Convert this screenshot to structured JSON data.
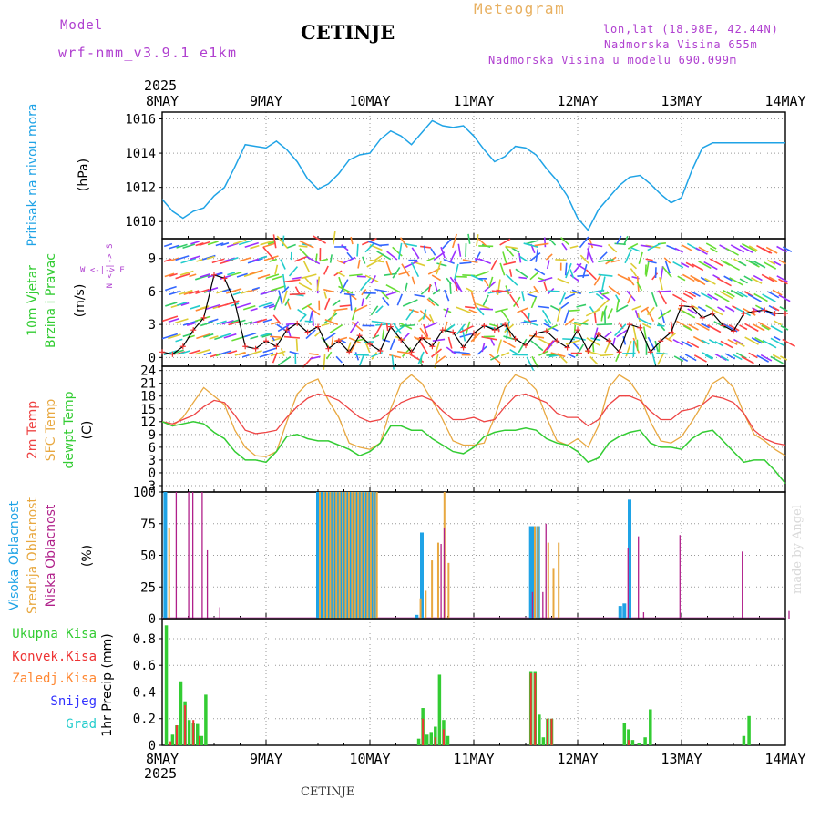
{
  "header": {
    "model_label": "Model",
    "model_name": "wrf-nmm_v3.9.1 e1km",
    "station": "CETINJE",
    "product": "Meteogram",
    "coords": "lon,lat (18.98E, 42.44N)",
    "altitude": "Nadmorska Visina 655m",
    "model_altitude": "Nadmorska Visina u modelu 690.099m",
    "footer_station": "CETINJE",
    "credit": "made by Angel"
  },
  "colors": {
    "pressure": "#1fa3e6",
    "temp2m": "#ee4444",
    "sfc": "#e8a840",
    "dew": "#33cc33",
    "high_cloud": "#1fa3e6",
    "mid_cloud": "#e8a840",
    "low_cloud": "#b0208a",
    "precip_total": "#33cc33",
    "precip_conv": "#ee3333",
    "frozen": "#ff8833",
    "snow": "#3333ff",
    "hail": "#22cccc",
    "axes_purple": "#b040d0"
  },
  "chart_data": [
    {
      "type": "line",
      "panel": "pressure",
      "title": "",
      "ylabel_left": "Pritisak na nivou mora",
      "ylabel_unit": "(hPa)",
      "x_start_label": "2025",
      "x_labels": [
        "8MAY",
        "9MAY",
        "10MAY",
        "11MAY",
        "12MAY",
        "13MAY",
        "14MAY"
      ],
      "x_label_days": [
        0,
        1,
        2,
        3,
        4,
        5,
        6
      ],
      "yticks": [
        "1010",
        "1012",
        "1014",
        "1016"
      ],
      "ylim": [
        1009.0,
        1016.4
      ],
      "grid": true,
      "series": [
        {
          "x": [
            0,
            0.1,
            0.2,
            0.3,
            0.4,
            0.5,
            0.6,
            0.7,
            0.8,
            0.9,
            1.0,
            1.1,
            1.2,
            1.3,
            1.4,
            1.5,
            1.6,
            1.7,
            1.8,
            1.9,
            2.0,
            2.1,
            2.2,
            2.3,
            2.4,
            2.5,
            2.6,
            2.7,
            2.8,
            2.9,
            3.0,
            3.1,
            3.2,
            3.3,
            3.4,
            3.5,
            3.6,
            3.7,
            3.8,
            3.9,
            4.0,
            4.1,
            4.2,
            4.3,
            4.4,
            4.5,
            4.6,
            4.7,
            4.8,
            4.9,
            5.0,
            5.1,
            5.2,
            5.3,
            5.4,
            5.5,
            5.6,
            5.7,
            5.8,
            5.9,
            6.0
          ],
          "y": [
            1011.3,
            1010.6,
            1010.2,
            1010.6,
            1010.8,
            1011.5,
            1012.0,
            1013.2,
            1014.5,
            1014.4,
            1014.3,
            1014.7,
            1014.2,
            1013.5,
            1012.5,
            1011.9,
            1012.2,
            1012.8,
            1013.6,
            1013.9,
            1014.0,
            1014.8,
            1015.3,
            1015.0,
            1014.5,
            1015.2,
            1015.9,
            1015.6,
            1015.5,
            1015.6,
            1015.0,
            1014.2,
            1013.5,
            1013.8,
            1014.4,
            1014.3,
            1013.9,
            1013.1,
            1012.4,
            1011.5,
            1010.2,
            1009.5,
            1010.7,
            1011.4,
            1012.1,
            1012.6,
            1012.7,
            1012.2,
            1011.6,
            1011.1,
            1011.4,
            1013.0,
            1014.3,
            1014.6,
            1014.6,
            1014.6,
            1014.6,
            1014.6,
            1014.6,
            1014.6,
            1014.6
          ]
        }
      ]
    },
    {
      "type": "line",
      "panel": "wind",
      "title": "",
      "ylabel_left_1": "10m Vjetar",
      "ylabel_left_2": "Brzina i Pravac",
      "ylabel_unit": "(m/s)",
      "compass": "W <-|-> E",
      "compass_ns": "N <-|-> S",
      "yticks": [
        "0",
        "3",
        "6",
        "9"
      ],
      "ylim": [
        -0.8,
        10.8
      ],
      "grid": true,
      "series": [
        {
          "name": "",
          "x": [
            0,
            0.1,
            0.2,
            0.3,
            0.4,
            0.5,
            0.6,
            0.7,
            0.8,
            0.9,
            1.0,
            1.1,
            1.2,
            1.3,
            1.4,
            1.5,
            1.6,
            1.7,
            1.8,
            1.9,
            2.0,
            2.1,
            2.2,
            2.3,
            2.4,
            2.5,
            2.6,
            2.7,
            2.8,
            2.9,
            3.0,
            3.1,
            3.2,
            3.3,
            3.4,
            3.5,
            3.6,
            3.7,
            3.8,
            3.9,
            4.0,
            4.1,
            4.2,
            4.3,
            4.4,
            4.5,
            4.6,
            4.7,
            4.8,
            4.9,
            5.0,
            5.1,
            5.2,
            5.3,
            5.4,
            5.5,
            5.6,
            5.7,
            5.8,
            5.9,
            6.0
          ],
          "y": [
            0.5,
            0.3,
            1.0,
            2.5,
            3.6,
            7.5,
            7.2,
            5.0,
            1.0,
            0.8,
            1.5,
            1.0,
            2.5,
            3.1,
            2.3,
            2.8,
            0.8,
            1.5,
            0.5,
            2.0,
            1.2,
            0.6,
            2.8,
            1.6,
            0.5,
            1.8,
            1.0,
            2.5,
            2.3,
            0.9,
            2.2,
            2.9,
            2.5,
            3.0,
            1.7,
            1.1,
            2.2,
            2.4,
            1.5,
            0.9,
            2.5,
            0.6,
            2.1,
            1.5,
            0.5,
            3.0,
            2.7,
            0.5,
            1.5,
            2.3,
            4.7,
            4.6,
            3.6,
            4.0,
            2.9,
            2.4,
            4.0,
            4.2,
            4.3,
            4.0,
            4.0
          ]
        }
      ]
    },
    {
      "type": "line",
      "panel": "temperature",
      "title": "",
      "legend": [
        "2m Temp",
        "SFC Temp",
        "dewpt Temp"
      ],
      "ylabel_unit": "(C)",
      "yticks": [
        "-3",
        "0",
        "3",
        "6",
        "9",
        "12",
        "15",
        "18",
        "21",
        "24"
      ],
      "ylim": [
        -4.5,
        25
      ],
      "grid": true,
      "series": [
        {
          "name": "2m Temp",
          "x": [
            0,
            0.1,
            0.2,
            0.3,
            0.4,
            0.5,
            0.6,
            0.7,
            0.8,
            0.9,
            1.0,
            1.1,
            1.2,
            1.3,
            1.4,
            1.5,
            1.6,
            1.7,
            1.8,
            1.9,
            2.0,
            2.1,
            2.2,
            2.3,
            2.4,
            2.5,
            2.6,
            2.7,
            2.8,
            2.9,
            3.0,
            3.1,
            3.2,
            3.3,
            3.4,
            3.5,
            3.6,
            3.7,
            3.8,
            3.9,
            4.0,
            4.1,
            4.2,
            4.3,
            4.4,
            4.5,
            4.6,
            4.7,
            4.8,
            4.9,
            5.0,
            5.1,
            5.2,
            5.3,
            5.4,
            5.5,
            5.6,
            5.7,
            5.8,
            5.9,
            6.0
          ],
          "y": [
            12.0,
            11.5,
            12.5,
            13.5,
            15.5,
            17.0,
            16.5,
            13.5,
            10.0,
            9.2,
            9.5,
            10.0,
            13.0,
            15.5,
            17.5,
            18.5,
            18.0,
            17.0,
            15.0,
            13.0,
            12.0,
            12.5,
            14.5,
            16.5,
            17.5,
            18.0,
            17.0,
            14.5,
            12.5,
            12.5,
            13.0,
            12.0,
            12.5,
            15.5,
            18.0,
            18.5,
            17.5,
            16.5,
            14.0,
            13.0,
            13.0,
            11.0,
            12.5,
            16.0,
            18.0,
            18.0,
            17.0,
            14.5,
            12.5,
            12.5,
            14.5,
            15.0,
            16.0,
            18.0,
            17.5,
            16.5,
            14.0,
            10.0,
            8.0,
            7.0,
            6.5
          ]
        },
        {
          "name": "SFC Temp",
          "x": [
            0,
            0.1,
            0.2,
            0.3,
            0.4,
            0.5,
            0.6,
            0.7,
            0.8,
            0.9,
            1.0,
            1.1,
            1.2,
            1.3,
            1.4,
            1.5,
            1.6,
            1.7,
            1.8,
            1.9,
            2.0,
            2.1,
            2.2,
            2.3,
            2.4,
            2.5,
            2.6,
            2.7,
            2.8,
            2.9,
            3.0,
            3.1,
            3.2,
            3.3,
            3.4,
            3.5,
            3.6,
            3.7,
            3.8,
            3.9,
            4.0,
            4.1,
            4.2,
            4.3,
            4.4,
            4.5,
            4.6,
            4.7,
            4.8,
            4.9,
            5.0,
            5.1,
            5.2,
            5.3,
            5.4,
            5.5,
            5.6,
            5.7,
            5.8,
            5.9,
            6.0
          ],
          "y": [
            12.0,
            11.0,
            13.0,
            16.5,
            20.0,
            18.0,
            16.0,
            10.0,
            6.0,
            4.0,
            3.8,
            5.0,
            12.0,
            18.5,
            21.0,
            22.0,
            17.0,
            13.0,
            7.0,
            6.0,
            5.5,
            7.0,
            15.0,
            21.0,
            23.0,
            21.0,
            17.0,
            12.5,
            7.5,
            6.5,
            6.5,
            7.0,
            13.0,
            20.0,
            23.0,
            22.0,
            19.5,
            13.0,
            7.5,
            6.5,
            8.0,
            6.0,
            11.0,
            20.0,
            23.0,
            21.5,
            18.0,
            12.0,
            7.5,
            7.0,
            8.5,
            12.0,
            16.0,
            21.0,
            22.5,
            20.0,
            14.0,
            9.0,
            7.5,
            5.5,
            4.0
          ]
        },
        {
          "name": "dewpt Temp",
          "x": [
            0,
            0.1,
            0.2,
            0.3,
            0.4,
            0.5,
            0.6,
            0.7,
            0.8,
            0.9,
            1.0,
            1.1,
            1.2,
            1.3,
            1.4,
            1.5,
            1.6,
            1.7,
            1.8,
            1.9,
            2.0,
            2.1,
            2.2,
            2.3,
            2.4,
            2.5,
            2.6,
            2.7,
            2.8,
            2.9,
            3.0,
            3.1,
            3.2,
            3.3,
            3.4,
            3.5,
            3.6,
            3.7,
            3.8,
            3.9,
            4.0,
            4.1,
            4.2,
            4.3,
            4.4,
            4.5,
            4.6,
            4.7,
            4.8,
            4.9,
            5.0,
            5.1,
            5.2,
            5.3,
            5.4,
            5.5,
            5.6,
            5.7,
            5.8,
            5.9,
            6.0
          ],
          "y": [
            12.0,
            11.0,
            11.5,
            12.0,
            11.5,
            9.5,
            8.0,
            5.0,
            3.0,
            3.0,
            2.5,
            5.0,
            8.5,
            9.0,
            8.0,
            7.5,
            7.5,
            6.5,
            5.5,
            4.0,
            5.0,
            7.0,
            11.0,
            11.0,
            10.0,
            10.0,
            8.0,
            6.5,
            5.0,
            4.5,
            6.0,
            8.5,
            9.5,
            10.0,
            10.0,
            10.5,
            10.0,
            8.0,
            7.0,
            6.5,
            5.0,
            2.5,
            3.5,
            7.0,
            8.5,
            9.5,
            10.0,
            7.0,
            6.0,
            6.0,
            5.5,
            8.0,
            9.5,
            10.0,
            7.5,
            5.0,
            2.5,
            3.0,
            3.0,
            0.5,
            -2.5
          ]
        }
      ]
    },
    {
      "type": "bar",
      "panel": "cloud",
      "title": "",
      "legend": [
        "Visoka Oblacnost",
        "Srednja Oblacnost",
        "Niska Oblacnost"
      ],
      "ylabel_unit": "(%)",
      "yticks": [
        "0",
        "25",
        "50",
        "75",
        "100"
      ],
      "ylim": [
        0,
        100
      ],
      "grid": true,
      "series": [
        {
          "name": "Visoka Oblacnost",
          "x": [
            0.03,
            1.5,
            1.53,
            1.56,
            1.59,
            1.62,
            1.65,
            1.68,
            1.71,
            1.74,
            1.77,
            1.8,
            1.83,
            1.86,
            1.89,
            1.92,
            1.95,
            1.98,
            2.01,
            2.04,
            2.45,
            2.5,
            3.55,
            3.58,
            3.62,
            4.41,
            4.45,
            4.5
          ],
          "y": [
            100,
            100,
            100,
            100,
            100,
            100,
            100,
            100,
            100,
            100,
            100,
            100,
            100,
            100,
            100,
            100,
            100,
            100,
            100,
            100,
            3,
            68,
            73,
            73,
            73,
            10,
            12,
            94
          ]
        },
        {
          "name": "Srednja Oblacnost",
          "x": [
            0.05,
            1.5,
            1.54,
            1.57,
            1.6,
            1.63,
            1.66,
            1.69,
            1.72,
            1.75,
            1.78,
            1.81,
            1.84,
            1.87,
            1.9,
            1.93,
            1.96,
            1.99,
            2.02,
            2.05,
            2.47,
            2.52,
            2.58,
            2.64,
            2.7,
            2.74,
            3.57,
            3.6,
            3.7,
            3.75,
            3.8
          ],
          "y": [
            72,
            100,
            100,
            100,
            100,
            100,
            100,
            100,
            100,
            100,
            100,
            100,
            100,
            100,
            100,
            100,
            100,
            100,
            100,
            100,
            16,
            22,
            46,
            60,
            100,
            44,
            73,
            73,
            60,
            40,
            60
          ]
        },
        {
          "name": "Niska Oblacnost",
          "x": [
            0.1,
            0.22,
            0.26,
            0.35,
            0.4,
            0.52,
            2.65,
            2.68,
            3.53,
            3.63,
            3.66,
            4.45,
            4.55,
            4.6,
            4.95,
            5.55,
            6.0
          ],
          "y": [
            100,
            100,
            100,
            100,
            54,
            9,
            59,
            72,
            21,
            21,
            75,
            56,
            65,
            5,
            66,
            53,
            6
          ]
        }
      ]
    },
    {
      "type": "bar",
      "panel": "precip",
      "title": "",
      "legend": [
        "Ukupna Kisa",
        "Konvek.Kisa",
        "Zaledj.Kisa",
        "Snijeg",
        "Grad"
      ],
      "ylabel_unit": "1hr Precip (mm)",
      "yticks": [
        "0",
        "0.2",
        "0.4",
        "0.6",
        "0.8"
      ],
      "ylim": [
        0,
        0.95
      ],
      "grid": true,
      "series": [
        {
          "name": "Ukupna Kisa",
          "x": [
            0.04,
            0.1,
            0.14,
            0.18,
            0.22,
            0.26,
            0.3,
            0.34,
            0.38,
            0.42,
            2.47,
            2.51,
            2.55,
            2.59,
            2.63,
            2.67,
            2.71,
            2.75,
            3.55,
            3.59,
            3.63,
            3.67,
            3.71,
            3.75,
            4.45,
            4.49,
            4.53,
            4.59,
            4.65,
            4.7,
            5.6,
            5.65
          ],
          "y": [
            0.9,
            0.08,
            0.15,
            0.48,
            0.33,
            0.19,
            0.17,
            0.16,
            0.07,
            0.38,
            0.05,
            0.28,
            0.08,
            0.1,
            0.14,
            0.53,
            0.19,
            0.07,
            0.55,
            0.55,
            0.23,
            0.06,
            0.2,
            0.2,
            0.17,
            0.12,
            0.04,
            0.02,
            0.06,
            0.27,
            0.07,
            0.22
          ]
        },
        {
          "name": "Konvek.Kisa",
          "x": [
            0.08,
            0.14,
            0.22,
            0.3,
            0.36,
            2.51,
            2.63,
            2.71,
            3.55,
            3.59,
            3.71,
            3.75,
            4.49
          ],
          "y": [
            0.03,
            0.15,
            0.3,
            0.19,
            0.07,
            0.2,
            0.06,
            0.12,
            0.54,
            0.54,
            0.2,
            0.2,
            0.04
          ]
        }
      ]
    }
  ]
}
